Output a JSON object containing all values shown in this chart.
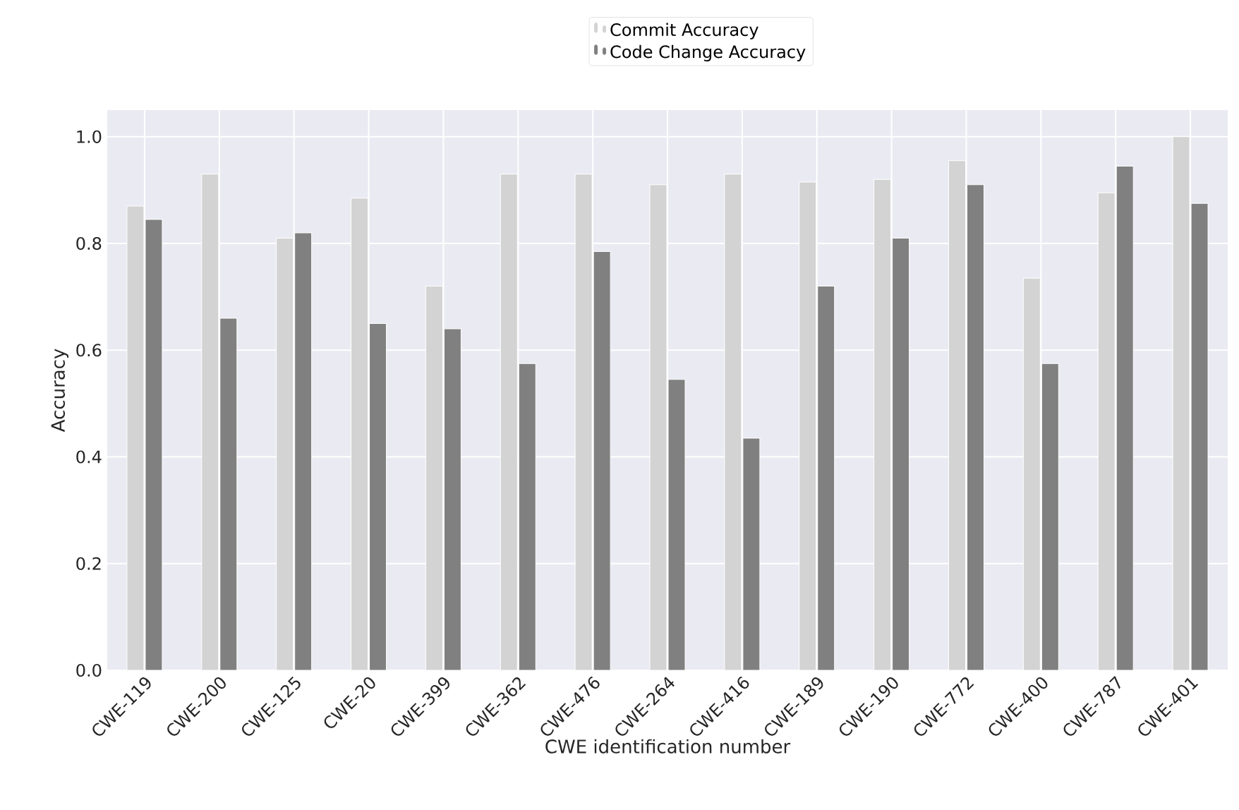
{
  "chart_data": {
    "type": "bar",
    "xlabel": "CWE identification number",
    "ylabel": "Accuracy",
    "categories": [
      "CWE-119",
      "CWE-200",
      "CWE-125",
      "CWE-20",
      "CWE-399",
      "CWE-362",
      "CWE-476",
      "CWE-264",
      "CWE-416",
      "CWE-189",
      "CWE-190",
      "CWE-772",
      "CWE-400",
      "CWE-787",
      "CWE-401"
    ],
    "series": [
      {
        "name": "Commit Accuracy",
        "color": "#d3d3d3",
        "values": [
          0.87,
          0.93,
          0.81,
          0.885,
          0.72,
          0.93,
          0.93,
          0.91,
          0.93,
          0.915,
          0.92,
          0.955,
          0.735,
          0.895,
          1.0
        ]
      },
      {
        "name": "Code Change Accuracy",
        "color": "#808080",
        "values": [
          0.845,
          0.66,
          0.82,
          0.65,
          0.64,
          0.575,
          0.785,
          0.545,
          0.435,
          0.72,
          0.81,
          0.91,
          0.575,
          0.945,
          0.875
        ]
      }
    ],
    "ylim": [
      0,
      1.05
    ],
    "yticks": [
      {
        "value": 0,
        "label": "0.0"
      },
      {
        "value": 0.2,
        "label": "0.2"
      },
      {
        "value": 0.4,
        "label": "0.4"
      },
      {
        "value": 0.6,
        "label": "0.6"
      },
      {
        "value": 0.8,
        "label": "0.8"
      },
      {
        "value": 1.0,
        "label": "1.0"
      }
    ],
    "grid": true,
    "legend": "top"
  }
}
